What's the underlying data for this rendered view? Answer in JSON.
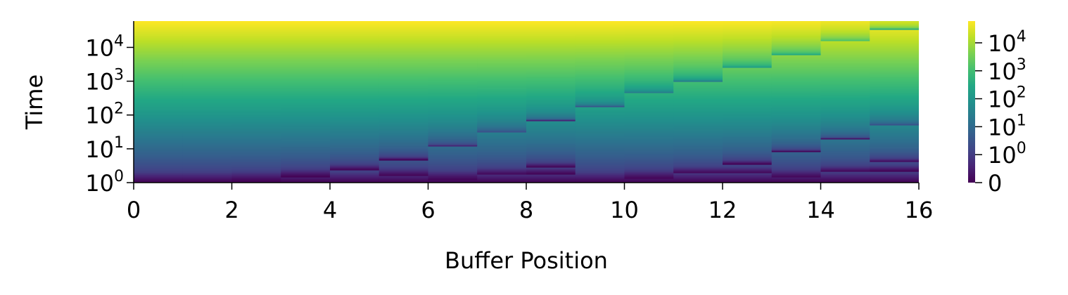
{
  "chart_data": {
    "type": "heatmap",
    "xlabel": "Buffer Position",
    "ylabel": "Time",
    "xlim": [
      0,
      16
    ],
    "x_ticks": [
      "0",
      "2",
      "4",
      "6",
      "8",
      "10",
      "12",
      "14",
      "16"
    ],
    "x_tick_values": [
      0,
      2,
      4,
      6,
      8,
      10,
      12,
      14,
      16
    ],
    "y_scale": "log",
    "ylim": [
      1,
      60000
    ],
    "y_ticks": [
      {
        "base": "10",
        "exp": "0",
        "value": 1
      },
      {
        "base": "10",
        "exp": "1",
        "value": 10
      },
      {
        "base": "10",
        "exp": "2",
        "value": 100
      },
      {
        "base": "10",
        "exp": "3",
        "value": 1000
      },
      {
        "base": "10",
        "exp": "4",
        "value": 10000
      }
    ],
    "colorbar": {
      "colormap": "viridis",
      "scale": "symlog",
      "ticks": [
        {
          "base": "",
          "exp": "",
          "label": "0",
          "value": 0
        },
        {
          "base": "10",
          "exp": "0",
          "value": 1
        },
        {
          "base": "10",
          "exp": "1",
          "value": 10
        },
        {
          "base": "10",
          "exp": "2",
          "value": 100
        },
        {
          "base": "10",
          "exp": "3",
          "value": 1000
        },
        {
          "base": "10",
          "exp": "4",
          "value": 10000
        }
      ],
      "vmax": 60000
    },
    "columns": [
      {
        "position": 0,
        "resets": []
      },
      {
        "position": 1,
        "resets": [
          1
        ]
      },
      {
        "position": 2,
        "resets": [
          1.1
        ]
      },
      {
        "position": 3,
        "resets": [
          1.5
        ]
      },
      {
        "position": 4,
        "resets": [
          2.4
        ]
      },
      {
        "position": 5,
        "resets": [
          1.6,
          4.8
        ]
      },
      {
        "position": 6,
        "resets": [
          1.2,
          12
        ]
      },
      {
        "position": 7,
        "resets": [
          1.7,
          30
        ]
      },
      {
        "position": 8,
        "resets": [
          1.8,
          2.9,
          70
        ]
      },
      {
        "position": 9,
        "resets": [
          1,
          180
        ]
      },
      {
        "position": 10,
        "resets": [
          1.3,
          450
        ]
      },
      {
        "position": 11,
        "resets": [
          1.9,
          1000
        ]
      },
      {
        "position": 12,
        "resets": [
          1.9,
          3.6,
          2500
        ]
      },
      {
        "position": 13,
        "resets": [
          1.4,
          8.5,
          6000
        ]
      },
      {
        "position": 14,
        "resets": [
          2.1,
          20,
          15000
        ]
      },
      {
        "position": 15,
        "resets": [
          2.2,
          4.2,
          50,
          35000
        ]
      }
    ]
  }
}
